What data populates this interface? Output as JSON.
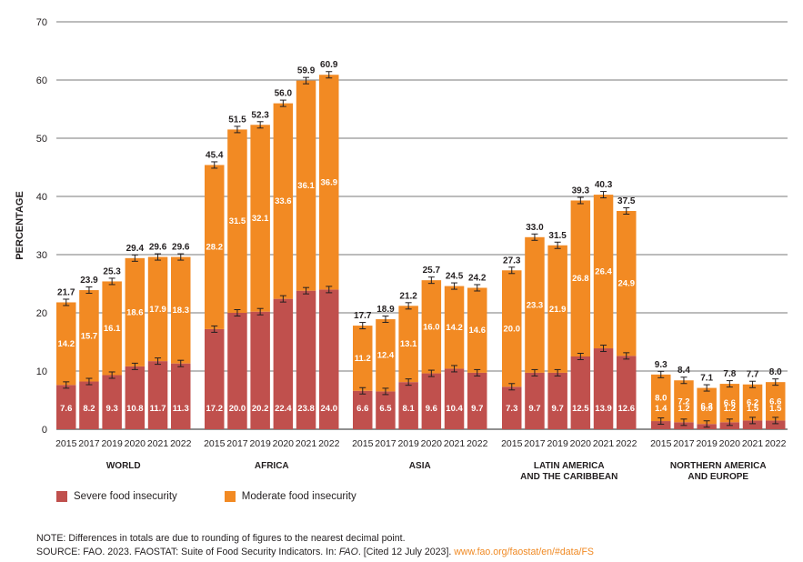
{
  "colors": {
    "severe": "#c0504d",
    "moderate": "#f28a23",
    "grid": "#4d4d4d",
    "link": "#f08a24"
  },
  "legend": {
    "severe_label": "Severe food insecurity",
    "moderate_label": "Moderate food insecurity"
  },
  "notes": {
    "note": "NOTE: Differences in totals are due to rounding of figures to the nearest decimal point.",
    "source_prefix": "SOURCE: FAO. 2023. FAOSTAT: Suite of Food Security Indicators. In: ",
    "source_italic": "FAO",
    "source_suffix": ". [Cited 12 July 2023]. ",
    "source_link": "www.fao.org/faostat/en/#data/FS"
  },
  "chart_data": {
    "type": "bar",
    "stacked": true,
    "ylabel": "PERCENTAGE",
    "ylim": [
      0,
      70
    ],
    "yticks": [
      0,
      10,
      20,
      30,
      40,
      50,
      60,
      70
    ],
    "grid": true,
    "legend_position": "bottom-left",
    "years": [
      "2015",
      "2017",
      "2019",
      "2020",
      "2021",
      "2022"
    ],
    "groups": [
      {
        "name": "WORLD",
        "name_lines": [
          "WORLD"
        ],
        "severe": [
          7.6,
          8.2,
          9.3,
          10.8,
          11.7,
          11.3
        ],
        "moderate": [
          14.2,
          15.7,
          16.1,
          18.6,
          17.9,
          18.3
        ],
        "totals": [
          "21.7",
          "23.9",
          "25.3",
          "29.4",
          "29.6",
          "29.6"
        ]
      },
      {
        "name": "AFRICA",
        "name_lines": [
          "AFRICA"
        ],
        "severe": [
          17.2,
          20.0,
          20.2,
          22.4,
          23.8,
          24.0
        ],
        "moderate": [
          28.2,
          31.5,
          32.1,
          33.6,
          36.1,
          36.9
        ],
        "totals": [
          "45.4",
          "51.5",
          "52.3",
          "56.0",
          "59.9",
          "60.9"
        ]
      },
      {
        "name": "ASIA",
        "name_lines": [
          "ASIA"
        ],
        "severe": [
          6.6,
          6.5,
          8.1,
          9.6,
          10.4,
          9.7
        ],
        "moderate": [
          11.2,
          12.4,
          13.1,
          16.0,
          14.2,
          14.6
        ],
        "totals": [
          "17.7",
          "18.9",
          "21.2",
          "25.7",
          "24.5",
          "24.2"
        ]
      },
      {
        "name": "LATIN AMERICA AND THE CARIBBEAN",
        "name_lines": [
          "LATIN AMERICA",
          "AND THE CARIBBEAN"
        ],
        "severe": [
          7.3,
          9.7,
          9.7,
          12.5,
          13.9,
          12.6
        ],
        "moderate": [
          20.0,
          23.3,
          21.9,
          26.8,
          26.4,
          24.9
        ],
        "totals": [
          "27.3",
          "33.0",
          "31.5",
          "39.3",
          "40.3",
          "37.5"
        ]
      },
      {
        "name": "NORTHERN AMERICA AND EUROPE",
        "name_lines": [
          "NORTHERN AMERICA",
          "AND EUROPE"
        ],
        "severe": [
          1.4,
          1.2,
          0.9,
          1.2,
          1.5,
          1.5
        ],
        "moderate": [
          8.0,
          7.2,
          6.2,
          6.6,
          6.2,
          6.6
        ],
        "totals": [
          "9.3",
          "8.4",
          "7.1",
          "7.8",
          "7.7",
          "8.0"
        ]
      }
    ]
  }
}
